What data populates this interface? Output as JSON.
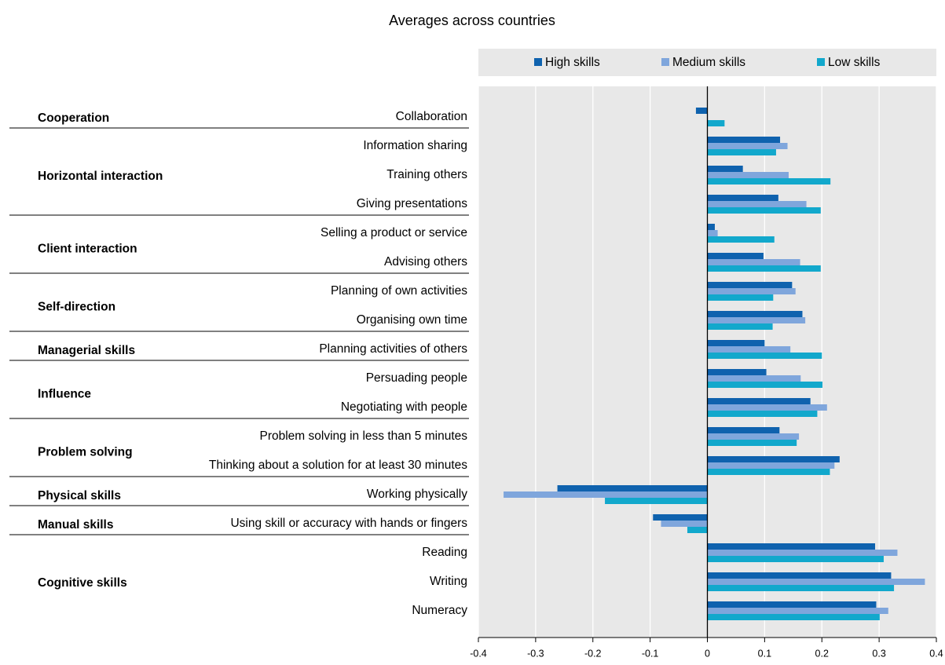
{
  "chart_data": {
    "type": "bar",
    "orientation": "horizontal",
    "title": "Averages across countries",
    "groups": [
      {
        "name": "Cooperation",
        "categories": [
          "Collaboration"
        ]
      },
      {
        "name": "Horizontal interaction",
        "categories": [
          "Information sharing",
          "Training others",
          "Giving presentations"
        ]
      },
      {
        "name": "Client interaction",
        "categories": [
          "Selling a product or service",
          "Advising others"
        ]
      },
      {
        "name": "Self-direction",
        "categories": [
          "Planning of own activities",
          "Organising own time"
        ]
      },
      {
        "name": "Managerial skills",
        "categories": [
          "Planning activities of others"
        ]
      },
      {
        "name": "Influence",
        "categories": [
          "Persuading people",
          "Negotiating with people"
        ]
      },
      {
        "name": "Problem solving",
        "categories": [
          "Problem solving in less than 5 minutes",
          "Thinking about a solution for at least 30 minutes"
        ]
      },
      {
        "name": "Physical skills",
        "categories": [
          "Working physically"
        ]
      },
      {
        "name": "Manual skills",
        "categories": [
          "Using skill or accuracy with hands or fingers"
        ]
      },
      {
        "name": "Cognitive skills",
        "categories": [
          "Reading",
          "Writing",
          "Numeracy"
        ]
      }
    ],
    "series": [
      {
        "name": "High skills",
        "color": "#0f62ae",
        "values": [
          -0.02,
          0.127,
          0.062,
          0.124,
          0.013,
          0.098,
          0.148,
          0.166,
          0.1,
          0.103,
          0.18,
          0.126,
          0.231,
          -0.262,
          -0.095,
          0.293,
          0.321,
          0.295
        ]
      },
      {
        "name": "Medium skills",
        "color": "#7fa6dc",
        "values": [
          0.001,
          0.14,
          0.142,
          0.173,
          0.018,
          0.162,
          0.154,
          0.171,
          0.145,
          0.163,
          0.209,
          0.16,
          0.222,
          -0.356,
          -0.081,
          0.332,
          0.38,
          0.316
        ]
      },
      {
        "name": "Low skills",
        "color": "#12a8cc",
        "values": [
          0.03,
          0.12,
          0.215,
          0.198,
          0.117,
          0.198,
          0.115,
          0.114,
          0.2,
          0.201,
          0.192,
          0.156,
          0.214,
          -0.179,
          -0.035,
          0.308,
          0.326,
          0.301
        ]
      }
    ],
    "xlim": [
      -0.4,
      0.4
    ],
    "xticks": [
      -0.4,
      -0.3,
      -0.2,
      -0.1,
      0,
      0.1,
      0.2,
      0.3,
      0.4
    ],
    "grid": true
  }
}
